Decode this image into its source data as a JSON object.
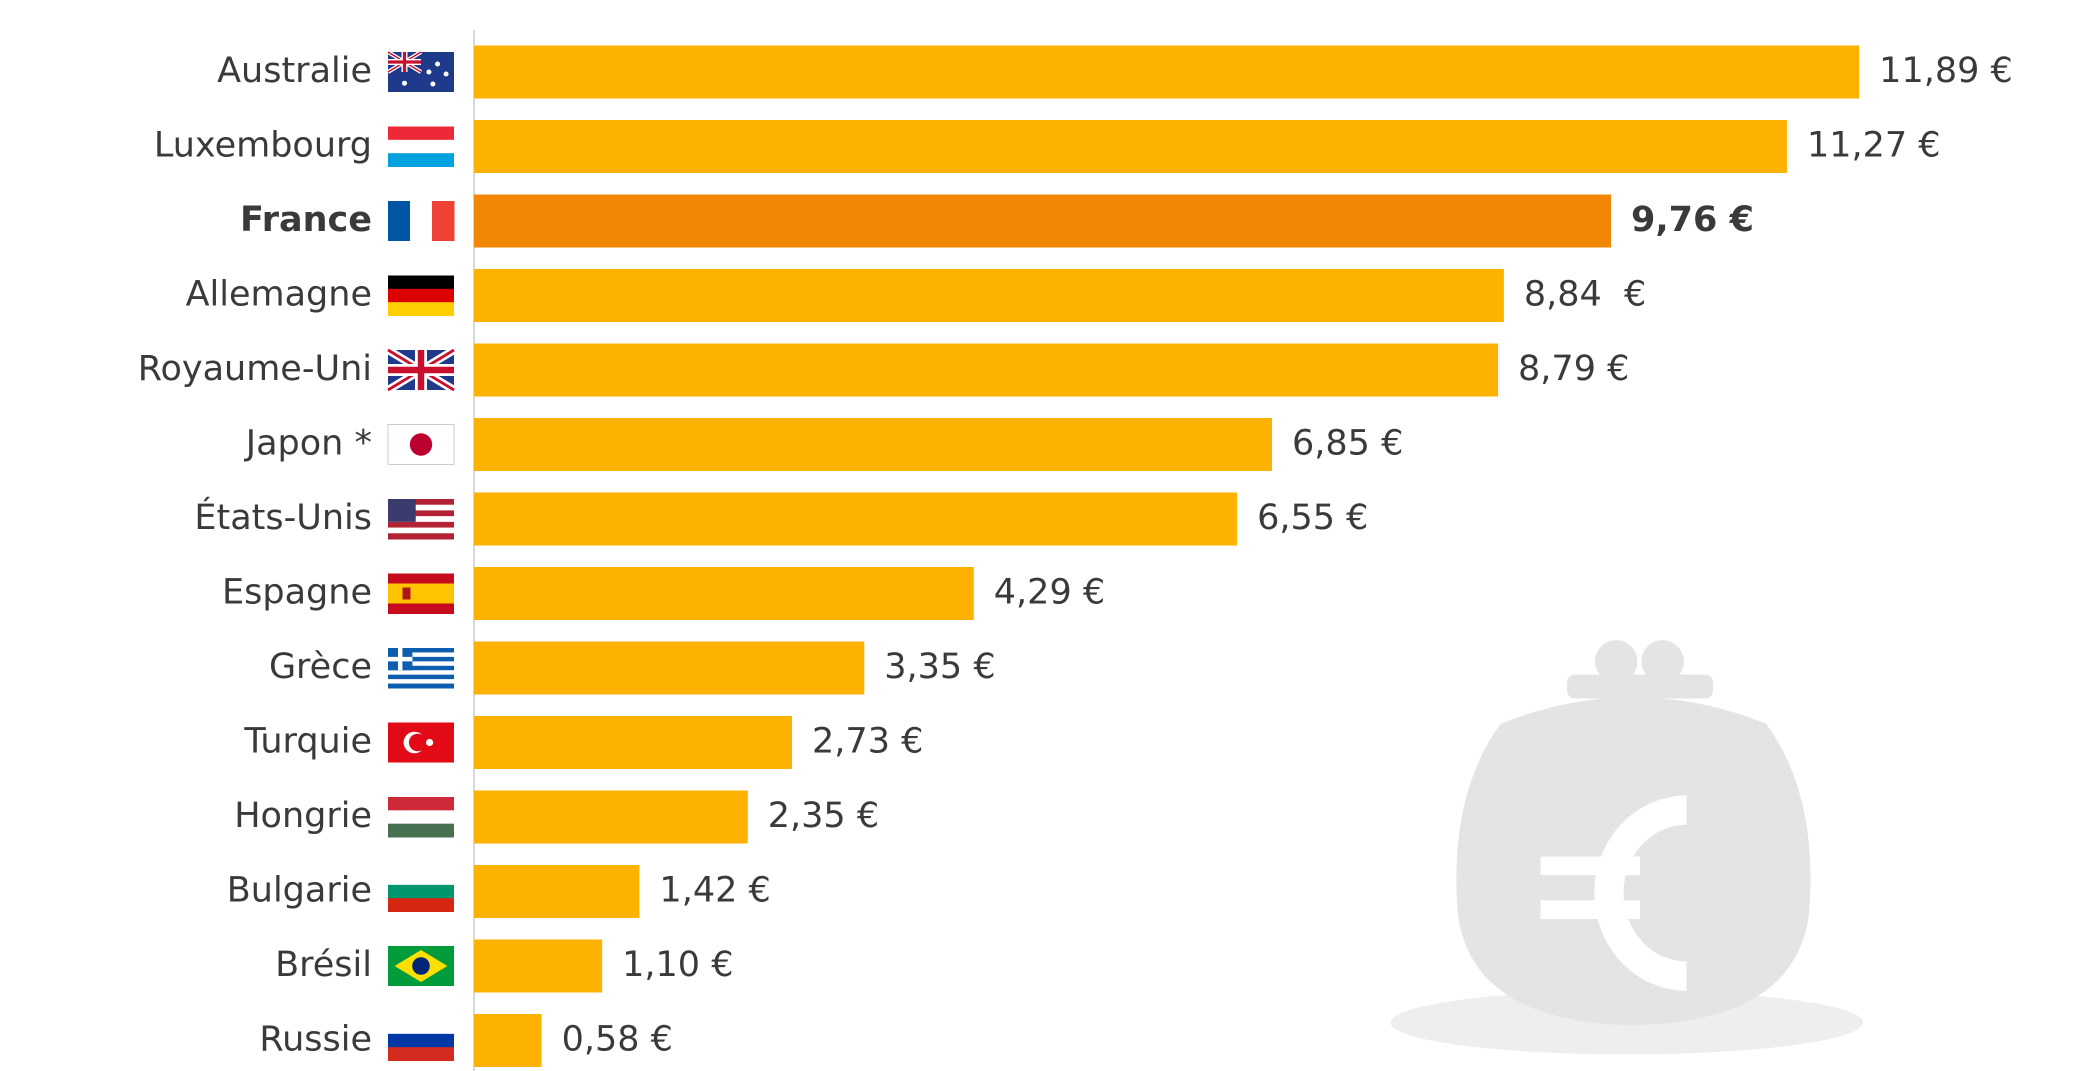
{
  "chart_data": {
    "type": "hbar",
    "categories": [
      "Australie",
      "Luxembourg",
      "France",
      "Allemagne",
      "Royaume-Uni",
      "Japon *",
      "États-Unis",
      "Espagne",
      "Grèce",
      "Turquie",
      "Hongrie",
      "Bulgarie",
      "Brésil",
      "Russie"
    ],
    "values": [
      11.89,
      11.27,
      9.76,
      8.84,
      8.79,
      6.85,
      6.55,
      4.29,
      3.35,
      2.73,
      2.35,
      1.42,
      1.1,
      0.58
    ],
    "value_labels": [
      "11,89 €",
      "11,27 €",
      "9,76 €",
      "8,84  €",
      "8,79 €",
      "6,85 €",
      "6,55 €",
      "4,29 €",
      "3,35 €",
      "2,73 €",
      "2,35 €",
      "1,42 €",
      "1,10 €",
      "0,58 €"
    ],
    "colors": [
      "#fdb201",
      "#fdb201",
      "#f28705",
      "#fdb201",
      "#fdb201",
      "#fdb201",
      "#fdb201",
      "#fdb201",
      "#fdb201",
      "#fdb201",
      "#fdb201",
      "#fdb201",
      "#fdb201",
      "#fdb201"
    ],
    "emphasis": [
      false,
      false,
      true,
      false,
      false,
      false,
      false,
      false,
      false,
      false,
      false,
      false,
      false,
      false
    ]
  }
}
